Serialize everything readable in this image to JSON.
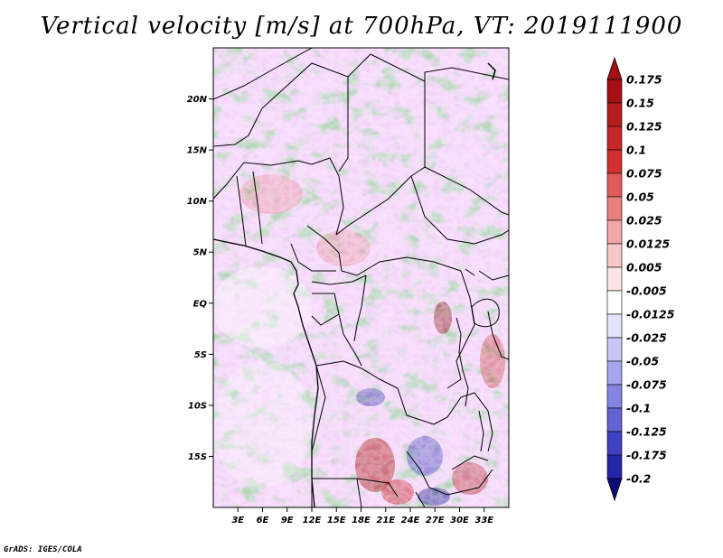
{
  "title": "Vertical velocity [m/s] at 700hPa, VT: 2019111900",
  "credit": "GrADS: IGES/COLA",
  "map": {
    "lon_range": [
      0,
      36
    ],
    "lat_range": [
      -20,
      25
    ],
    "lat_ticks": [
      {
        "value": 20,
        "label": "20N"
      },
      {
        "value": 15,
        "label": "15N"
      },
      {
        "value": 10,
        "label": "10N"
      },
      {
        "value": 5,
        "label": "5N"
      },
      {
        "value": 0,
        "label": "EQ"
      },
      {
        "value": -5,
        "label": "5S"
      },
      {
        "value": -10,
        "label": "10S"
      },
      {
        "value": -15,
        "label": "15S"
      }
    ],
    "lon_ticks": [
      {
        "value": 3,
        "label": "3E"
      },
      {
        "value": 6,
        "label": "6E"
      },
      {
        "value": 9,
        "label": "9E"
      },
      {
        "value": 12,
        "label": "12E"
      },
      {
        "value": 15,
        "label": "15E"
      },
      {
        "value": 18,
        "label": "18E"
      },
      {
        "value": 21,
        "label": "21E"
      },
      {
        "value": 24,
        "label": "24E"
      },
      {
        "value": 27,
        "label": "27E"
      },
      {
        "value": 30,
        "label": "30E"
      },
      {
        "value": 33,
        "label": "33E"
      }
    ]
  },
  "colorbar": {
    "levels": [
      {
        "label": "0.175",
        "color": "#a50f15"
      },
      {
        "label": "0.15",
        "color": "#b71c1c"
      },
      {
        "label": "0.125",
        "color": "#c62828"
      },
      {
        "label": "0.1",
        "color": "#d32f2f"
      },
      {
        "label": "0.075",
        "color": "#e05a5a"
      },
      {
        "label": "0.05",
        "color": "#e98080"
      },
      {
        "label": "0.025",
        "color": "#f2a6a6"
      },
      {
        "label": "0.0125",
        "color": "#f8c8c8"
      },
      {
        "label": "0.005",
        "color": "#fce4e4"
      },
      {
        "label": "-0.005",
        "color": "#ffffff"
      },
      {
        "label": "-0.0125",
        "color": "#e4e4fc"
      },
      {
        "label": "-0.025",
        "color": "#c8c8f6"
      },
      {
        "label": "-0.05",
        "color": "#a6a6ee"
      },
      {
        "label": "-0.075",
        "color": "#8484e2"
      },
      {
        "label": "-0.1",
        "color": "#6262d4"
      },
      {
        "label": "-0.125",
        "color": "#4040c2"
      },
      {
        "label": "-0.175",
        "color": "#2525aa"
      },
      {
        "label": "-0.2",
        "color": "#12128c"
      }
    ],
    "top_color": "#a50f15",
    "bottom_color": "#0c0c78"
  }
}
